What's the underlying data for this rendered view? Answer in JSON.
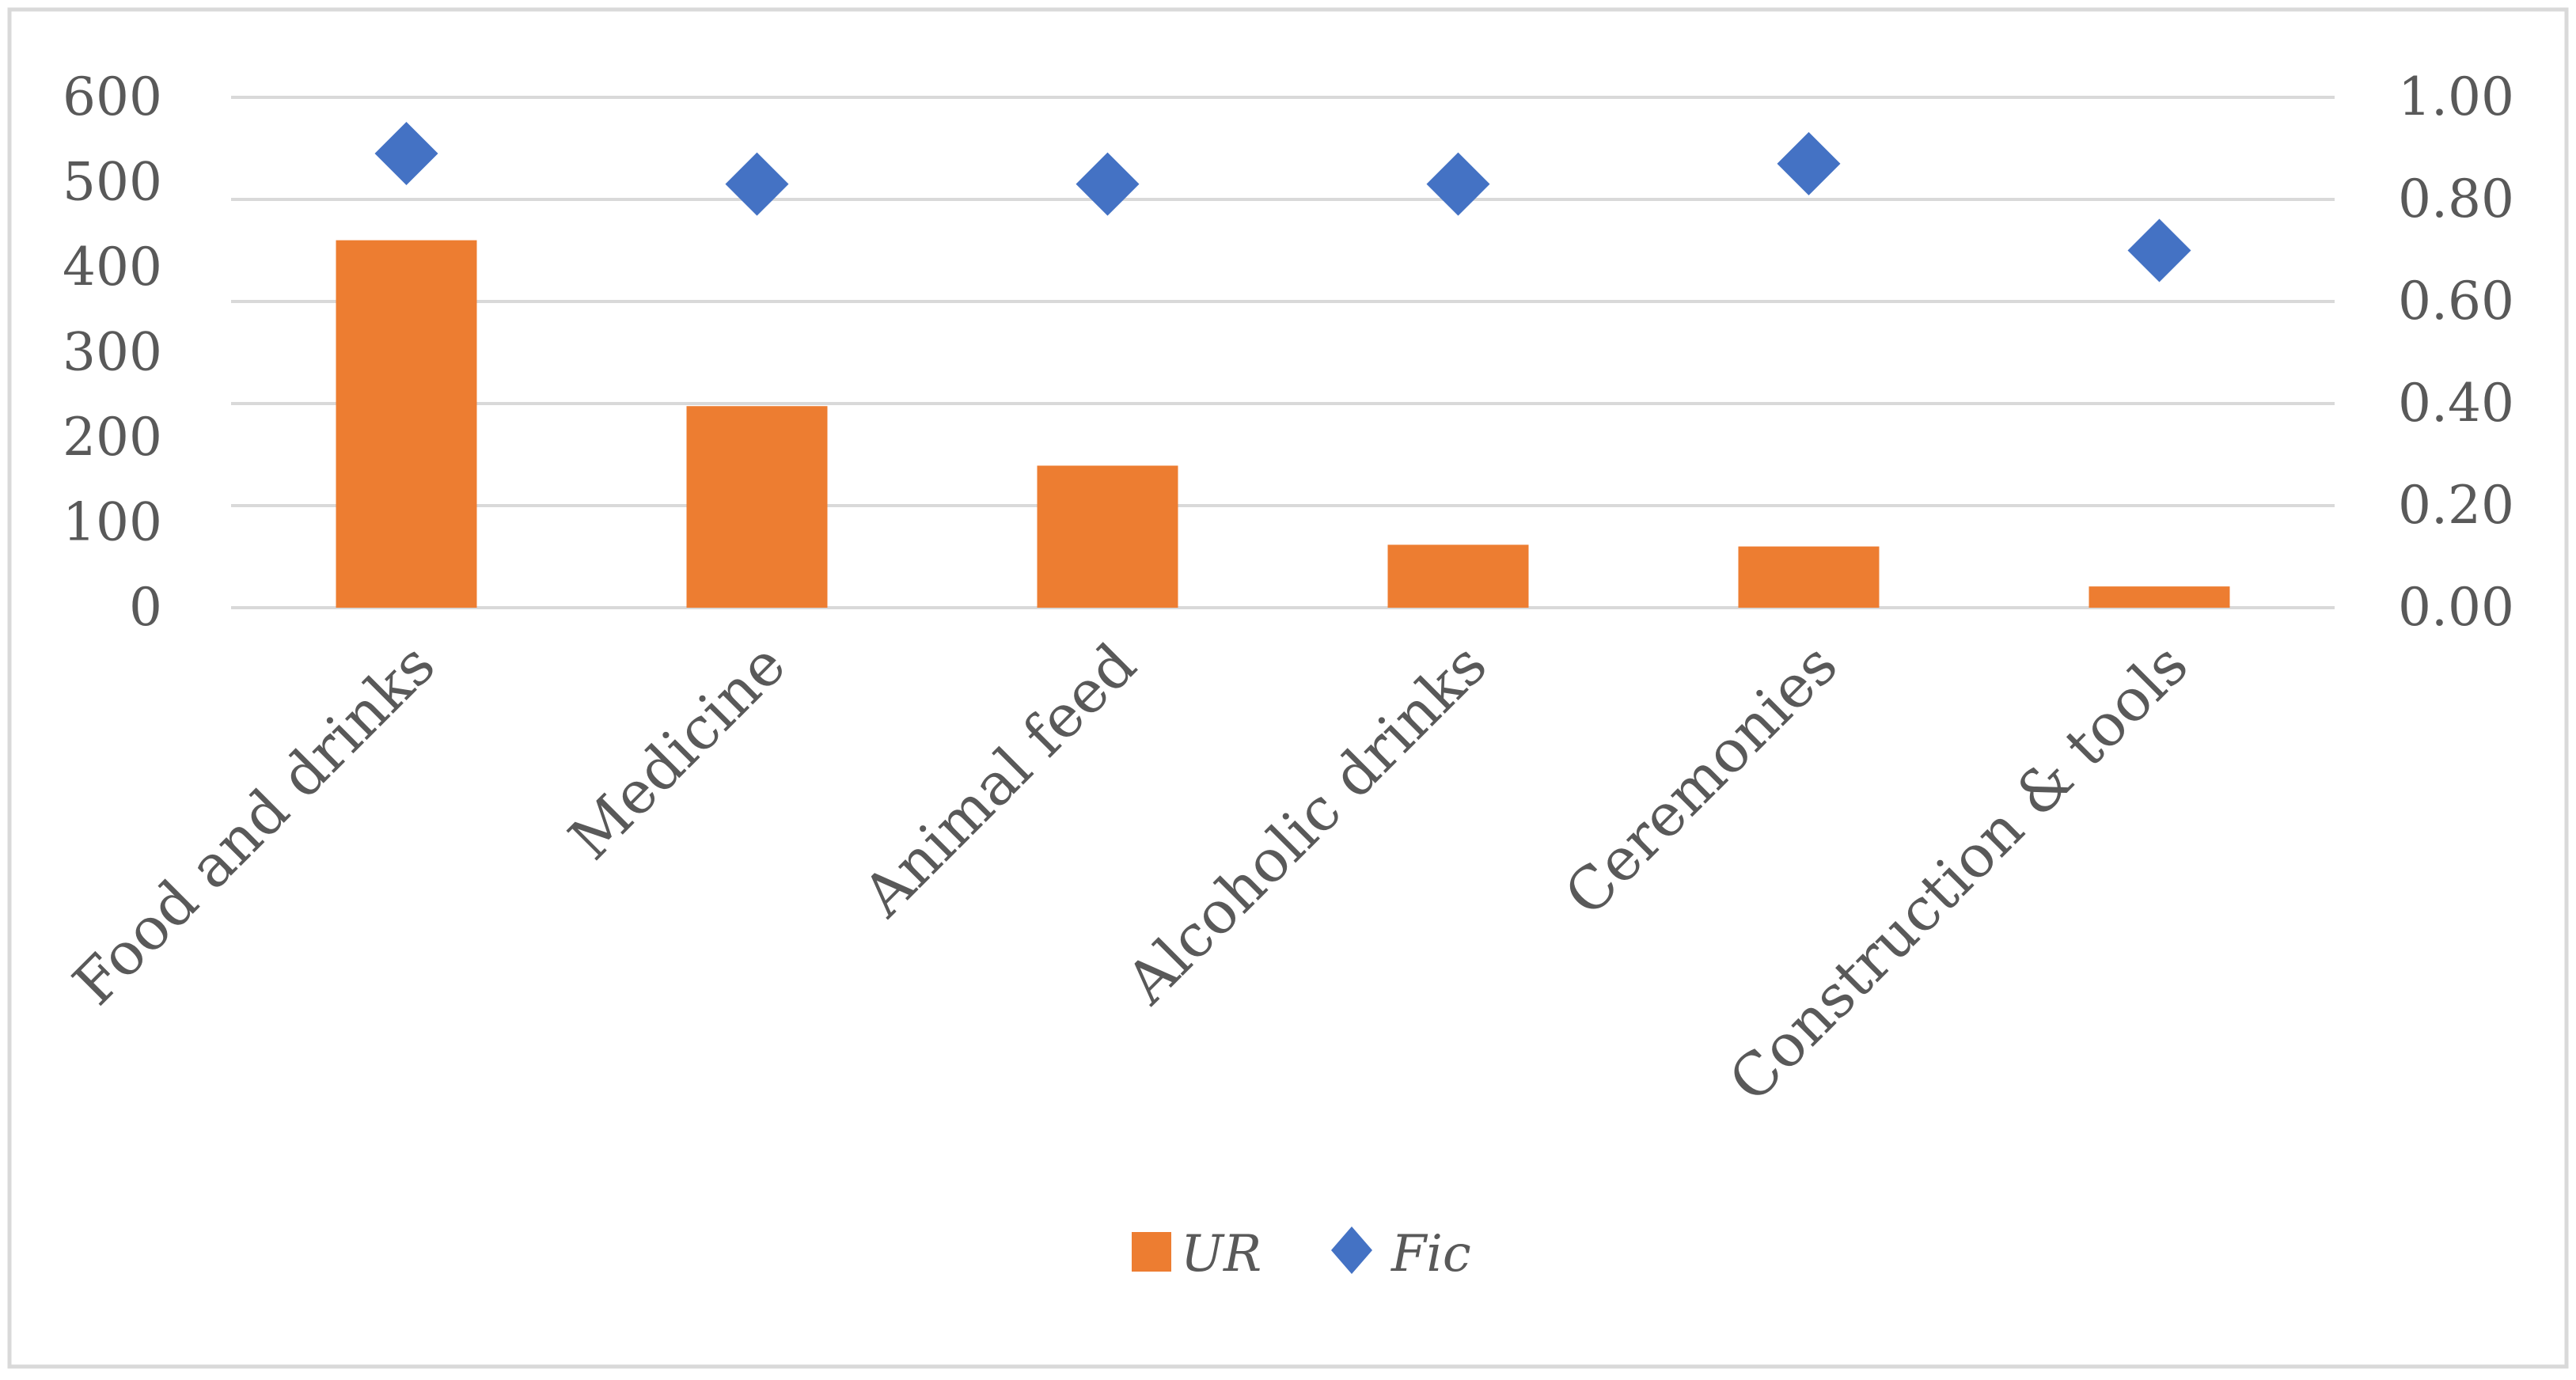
{
  "chart_data": {
    "type": "bar",
    "categories": [
      "Food and drinks",
      "Medicine",
      "Animal feed",
      "Alcoholic drinks",
      "Ceremonies",
      "Construction & tools"
    ],
    "series": [
      {
        "name": "UR",
        "kind": "bar",
        "axis": "left",
        "color": "#ED7D31",
        "values": [
          432,
          237,
          167,
          74,
          72,
          25
        ]
      },
      {
        "name": "Fic",
        "kind": "scatter",
        "marker": "diamond",
        "axis": "right",
        "color": "#4472C4",
        "values": [
          0.89,
          0.83,
          0.83,
          0.83,
          0.87,
          0.7
        ]
      }
    ],
    "y_left": {
      "ylim": [
        0,
        600
      ],
      "ticks": [
        "0",
        "100",
        "200",
        "300",
        "400",
        "500",
        "600"
      ]
    },
    "y_right": {
      "ylim": [
        0,
        1.0
      ],
      "ticks": [
        "0.00",
        "0.20",
        "0.40",
        "0.60",
        "0.80",
        "1.00"
      ]
    },
    "grid": true,
    "legend_position": "bottom"
  }
}
